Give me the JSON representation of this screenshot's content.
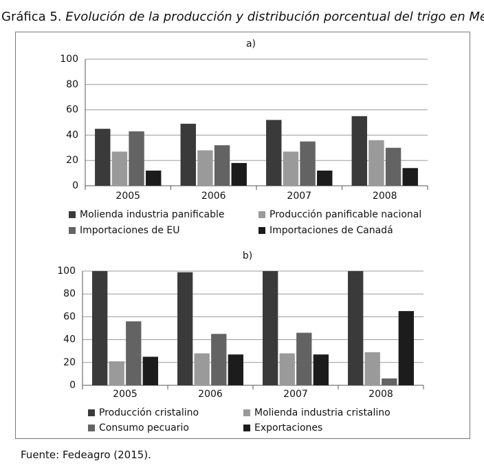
{
  "title_prefix": "Gráfica 5.",
  "title_italic": "Evolución de la producción y distribución porcentual del trigo en Méxi",
  "source": "Fuente: Fedeagro (2015).",
  "colors": {
    "series1": "#3a3a3a",
    "series2": "#9a9a9a",
    "series3": "#636363",
    "series4": "#1c1c1c"
  },
  "chart_data": [
    {
      "type": "bar",
      "panel_label": "a)",
      "categories": [
        "2005",
        "2006",
        "2007",
        "2008"
      ],
      "ylim": [
        0,
        100
      ],
      "yticks": [
        0,
        20,
        40,
        60,
        80,
        100
      ],
      "grid": true,
      "legend_position": "bottom",
      "series": [
        {
          "name": "Molienda industria panificable",
          "values": [
            45,
            49,
            52,
            55
          ]
        },
        {
          "name": "Producción panificable nacional",
          "values": [
            27,
            28,
            27,
            36
          ]
        },
        {
          "name": "Importaciones de EU",
          "values": [
            43,
            32,
            35,
            30
          ]
        },
        {
          "name": "Importaciones de Canadá",
          "values": [
            12,
            18,
            12,
            14
          ]
        }
      ]
    },
    {
      "type": "bar",
      "panel_label": "b)",
      "categories": [
        "2005",
        "2006",
        "2007",
        "2008"
      ],
      "ylim": [
        0,
        100
      ],
      "yticks": [
        0,
        20,
        40,
        60,
        80,
        100
      ],
      "grid": true,
      "legend_position": "bottom",
      "series": [
        {
          "name": "Producción cristalino",
          "values": [
            100,
            99,
            100,
            100
          ]
        },
        {
          "name": "Molienda industria cristalino",
          "values": [
            21,
            28,
            28,
            29
          ]
        },
        {
          "name": "Consumo pecuario",
          "values": [
            56,
            45,
            46,
            6
          ]
        },
        {
          "name": "Exportaciones",
          "values": [
            25,
            27,
            27,
            65
          ]
        }
      ]
    }
  ]
}
